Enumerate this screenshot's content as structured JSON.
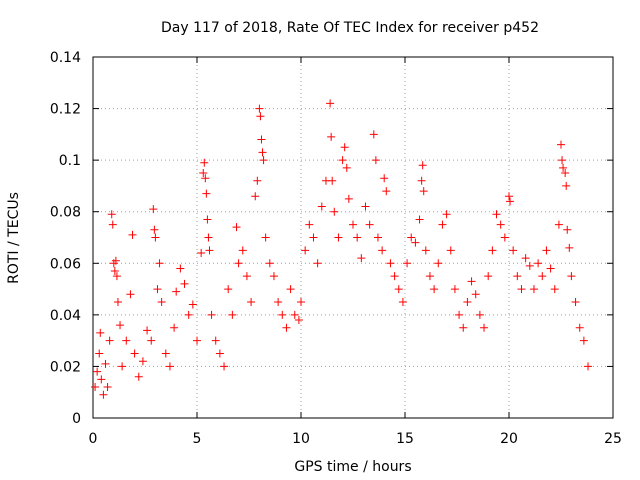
{
  "chart_data": {
    "type": "scatter",
    "title": "Day 117 of 2018, Rate Of TEC Index for receiver p452",
    "xlabel": "GPS time / hours",
    "ylabel": "ROTI / TECUs",
    "xlim": [
      0,
      25
    ],
    "ylim": [
      0,
      0.14
    ],
    "xticks": [
      0,
      5,
      10,
      15,
      20,
      25
    ],
    "xtick_labels": [
      "0",
      "5",
      "10",
      "15",
      "20",
      "25"
    ],
    "yticks": [
      0,
      0.02,
      0.04,
      0.06,
      0.08,
      0.1,
      0.12,
      0.14
    ],
    "ytick_labels": [
      "0",
      "0.02",
      "0.04",
      "0.06",
      "0.08",
      "0.1",
      "0.12",
      "0.14"
    ],
    "grid": true,
    "marker": "+",
    "series": [
      {
        "name": "ROTI",
        "color": "#ff0000",
        "points": [
          [
            0.1,
            0.012
          ],
          [
            0.2,
            0.018
          ],
          [
            0.3,
            0.025
          ],
          [
            0.35,
            0.033
          ],
          [
            0.4,
            0.015
          ],
          [
            0.5,
            0.009
          ],
          [
            0.6,
            0.021
          ],
          [
            0.7,
            0.012
          ],
          [
            0.8,
            0.03
          ],
          [
            0.9,
            0.079
          ],
          [
            0.95,
            0.075
          ],
          [
            1.0,
            0.06
          ],
          [
            1.05,
            0.057
          ],
          [
            1.1,
            0.061
          ],
          [
            1.15,
            0.055
          ],
          [
            1.2,
            0.045
          ],
          [
            1.3,
            0.036
          ],
          [
            1.4,
            0.02
          ],
          [
            1.6,
            0.03
          ],
          [
            1.8,
            0.048
          ],
          [
            1.9,
            0.071
          ],
          [
            2.0,
            0.025
          ],
          [
            2.2,
            0.016
          ],
          [
            2.4,
            0.022
          ],
          [
            2.6,
            0.034
          ],
          [
            2.8,
            0.03
          ],
          [
            2.9,
            0.081
          ],
          [
            2.95,
            0.073
          ],
          [
            3.0,
            0.07
          ],
          [
            3.1,
            0.05
          ],
          [
            3.2,
            0.06
          ],
          [
            3.3,
            0.045
          ],
          [
            3.5,
            0.025
          ],
          [
            3.7,
            0.02
          ],
          [
            3.9,
            0.035
          ],
          [
            4.0,
            0.049
          ],
          [
            4.2,
            0.058
          ],
          [
            4.4,
            0.052
          ],
          [
            4.6,
            0.04
          ],
          [
            4.8,
            0.044
          ],
          [
            5.0,
            0.03
          ],
          [
            5.2,
            0.064
          ],
          [
            5.3,
            0.095
          ],
          [
            5.35,
            0.099
          ],
          [
            5.4,
            0.093
          ],
          [
            5.45,
            0.087
          ],
          [
            5.5,
            0.077
          ],
          [
            5.55,
            0.07
          ],
          [
            5.6,
            0.065
          ],
          [
            5.7,
            0.04
          ],
          [
            5.9,
            0.03
          ],
          [
            6.1,
            0.025
          ],
          [
            6.3,
            0.02
          ],
          [
            6.5,
            0.05
          ],
          [
            6.7,
            0.04
          ],
          [
            6.9,
            0.074
          ],
          [
            7.0,
            0.06
          ],
          [
            7.2,
            0.065
          ],
          [
            7.4,
            0.055
          ],
          [
            7.6,
            0.045
          ],
          [
            7.8,
            0.086
          ],
          [
            7.9,
            0.092
          ],
          [
            8.0,
            0.12
          ],
          [
            8.05,
            0.117
          ],
          [
            8.1,
            0.108
          ],
          [
            8.15,
            0.103
          ],
          [
            8.2,
            0.1
          ],
          [
            8.3,
            0.07
          ],
          [
            8.5,
            0.06
          ],
          [
            8.7,
            0.055
          ],
          [
            8.9,
            0.045
          ],
          [
            9.1,
            0.04
          ],
          [
            9.3,
            0.035
          ],
          [
            9.5,
            0.05
          ],
          [
            9.7,
            0.04
          ],
          [
            9.9,
            0.038
          ],
          [
            10.0,
            0.045
          ],
          [
            10.2,
            0.065
          ],
          [
            10.4,
            0.075
          ],
          [
            10.6,
            0.07
          ],
          [
            10.8,
            0.06
          ],
          [
            11.0,
            0.082
          ],
          [
            11.2,
            0.092
          ],
          [
            11.4,
            0.122
          ],
          [
            11.45,
            0.109
          ],
          [
            11.5,
            0.092
          ],
          [
            11.6,
            0.08
          ],
          [
            11.8,
            0.07
          ],
          [
            12.0,
            0.1
          ],
          [
            12.1,
            0.105
          ],
          [
            12.2,
            0.097
          ],
          [
            12.3,
            0.085
          ],
          [
            12.5,
            0.075
          ],
          [
            12.7,
            0.07
          ],
          [
            12.9,
            0.062
          ],
          [
            13.1,
            0.082
          ],
          [
            13.3,
            0.075
          ],
          [
            13.5,
            0.11
          ],
          [
            13.6,
            0.1
          ],
          [
            13.7,
            0.07
          ],
          [
            13.9,
            0.065
          ],
          [
            14.0,
            0.093
          ],
          [
            14.1,
            0.088
          ],
          [
            14.3,
            0.06
          ],
          [
            14.5,
            0.055
          ],
          [
            14.7,
            0.05
          ],
          [
            14.9,
            0.045
          ],
          [
            15.1,
            0.06
          ],
          [
            15.3,
            0.07
          ],
          [
            15.5,
            0.068
          ],
          [
            15.7,
            0.077
          ],
          [
            15.8,
            0.092
          ],
          [
            15.85,
            0.098
          ],
          [
            15.9,
            0.088
          ],
          [
            16.0,
            0.065
          ],
          [
            16.2,
            0.055
          ],
          [
            16.4,
            0.05
          ],
          [
            16.6,
            0.06
          ],
          [
            16.8,
            0.075
          ],
          [
            17.0,
            0.079
          ],
          [
            17.2,
            0.065
          ],
          [
            17.4,
            0.05
          ],
          [
            17.6,
            0.04
          ],
          [
            17.8,
            0.035
          ],
          [
            18.0,
            0.045
          ],
          [
            18.2,
            0.053
          ],
          [
            18.4,
            0.048
          ],
          [
            18.6,
            0.04
          ],
          [
            18.8,
            0.035
          ],
          [
            19.0,
            0.055
          ],
          [
            19.2,
            0.065
          ],
          [
            19.4,
            0.079
          ],
          [
            19.6,
            0.075
          ],
          [
            19.8,
            0.07
          ],
          [
            20.0,
            0.086
          ],
          [
            20.05,
            0.084
          ],
          [
            20.2,
            0.065
          ],
          [
            20.4,
            0.055
          ],
          [
            20.6,
            0.05
          ],
          [
            20.8,
            0.062
          ],
          [
            21.0,
            0.059
          ],
          [
            21.2,
            0.05
          ],
          [
            21.4,
            0.06
          ],
          [
            21.6,
            0.055
          ],
          [
            21.8,
            0.065
          ],
          [
            22.0,
            0.058
          ],
          [
            22.2,
            0.05
          ],
          [
            22.4,
            0.075
          ],
          [
            22.5,
            0.106
          ],
          [
            22.55,
            0.1
          ],
          [
            22.6,
            0.097
          ],
          [
            22.7,
            0.095
          ],
          [
            22.75,
            0.09
          ],
          [
            22.8,
            0.073
          ],
          [
            22.9,
            0.066
          ],
          [
            23.0,
            0.055
          ],
          [
            23.2,
            0.045
          ],
          [
            23.4,
            0.035
          ],
          [
            23.6,
            0.03
          ],
          [
            23.8,
            0.02
          ]
        ]
      }
    ]
  }
}
